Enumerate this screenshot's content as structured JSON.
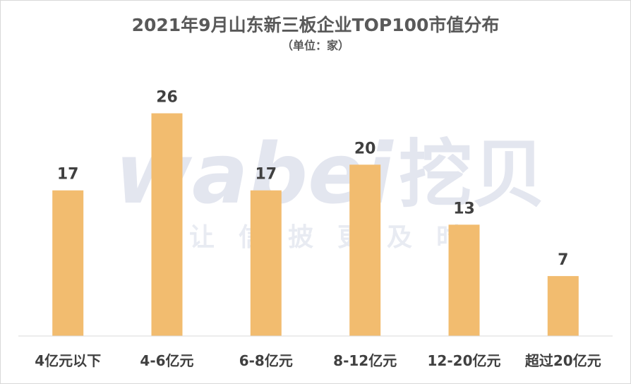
{
  "chart_data": {
    "type": "bar",
    "title": "2021年9月山东新三板企业TOP100市值分布",
    "subtitle": "（单位：家）",
    "categories": [
      "4亿元以下",
      "4-6亿元",
      "6-8亿元",
      "8-12亿元",
      "12-20亿元",
      "超过20亿元"
    ],
    "values": [
      17,
      26,
      17,
      20,
      13,
      7
    ],
    "ylim": [
      0,
      30
    ],
    "grid": false,
    "bar_color": "#f2bc6f"
  },
  "watermark": {
    "logo_text": "wabei",
    "logo_cn": "挖贝",
    "slogan": "让信披更及时"
  }
}
